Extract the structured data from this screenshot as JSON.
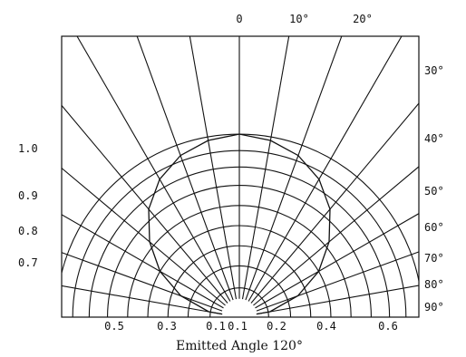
{
  "chart_data": {
    "type": "polar",
    "xlabel": "Emitted Angle 120°",
    "angle_unit": "°",
    "top_angle_labels": [
      "0",
      "10°",
      "20°"
    ],
    "right_angle_labels": [
      "30°",
      "40°",
      "50°",
      "60°",
      "70°",
      "80°",
      "90°"
    ],
    "left_value_labels": [
      "1.0",
      "0.9",
      "0.8",
      "0.7"
    ],
    "bottom_value_labels": [
      "0.5",
      "0.3",
      "0.1",
      "0.1",
      "0.2",
      "0.4",
      "0.6"
    ],
    "radial_angles_deg": [
      0,
      10,
      20,
      30,
      40,
      50,
      60,
      70,
      80,
      90
    ],
    "intensity_ring_fractions": [
      0.07,
      0.16,
      0.28,
      0.39,
      0.5,
      0.61,
      0.72,
      0.82,
      0.91,
      1.0
    ],
    "angle_ring_cutoff_fraction": 0.1,
    "emission_pattern": {
      "type": "lambertian",
      "relative_intensity": [
        1.0,
        0.98,
        0.94,
        0.87,
        0.77,
        0.64,
        0.5,
        0.34,
        0.17,
        0.0
      ]
    },
    "grid": true
  }
}
